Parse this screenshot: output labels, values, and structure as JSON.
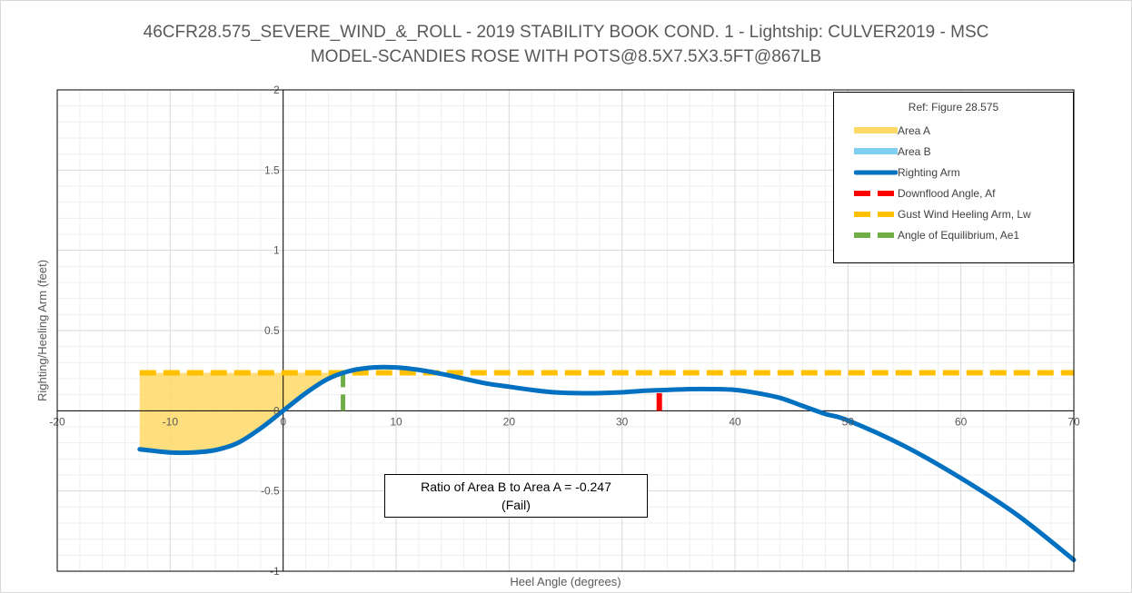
{
  "chart_data": {
    "type": "area",
    "title_lines": [
      "46CFR28.575_SEVERE_WIND_&_ROLL - 2019 STABILITY BOOK COND. 1 - Lightship: CULVER2019 - MSC",
      "MODEL-SCANDIES ROSE WITH POTS@8.5X7.5X3.5FT@867LB"
    ],
    "xlabel": "Heel Angle (degrees)",
    "ylabel": "Righting/Heeling Arm (feet)",
    "xlim": [
      -20,
      70
    ],
    "ylim": [
      -1,
      2
    ],
    "x_ticks": [
      "-20",
      "-10",
      "0",
      "10",
      "20",
      "30",
      "40",
      "50",
      "60",
      "70"
    ],
    "y_ticks": [
      "-1",
      "-0.5",
      "0",
      "0.5",
      "1",
      "1.5",
      "2"
    ],
    "grid": true,
    "legend": {
      "title": "Ref: Figure 28.575",
      "placement": "top-right",
      "items": [
        {
          "label": "Area A",
          "color": "#FFD966",
          "style": "area"
        },
        {
          "label": "Area B",
          "color": "#7FD0F0",
          "style": "area"
        },
        {
          "label": "Righting Arm",
          "color": "#0070C0",
          "style": "line"
        },
        {
          "label": "Downflood Angle, Af",
          "color": "#FF0000",
          "style": "dashed"
        },
        {
          "label": "Gust Wind Heeling Arm, Lw",
          "color": "#FFC000",
          "style": "dashed"
        },
        {
          "label": "Angle of Equilibrium, Ae1",
          "color": "#70AD47",
          "style": "dashed"
        }
      ]
    },
    "series": [
      {
        "name": "Righting Arm",
        "color": "#0070C0",
        "x": [
          -12.7,
          -10,
          -8,
          -6,
          -4,
          -2,
          0,
          2,
          4,
          6,
          8,
          10,
          12,
          14,
          16,
          18,
          20,
          22,
          24,
          26,
          28,
          30,
          32,
          34,
          36,
          38,
          40,
          42,
          44,
          46,
          48,
          50,
          55,
          60,
          65,
          70
        ],
        "y": [
          -0.24,
          -0.26,
          -0.26,
          -0.245,
          -0.2,
          -0.11,
          0.0,
          0.11,
          0.2,
          0.25,
          0.27,
          0.27,
          0.255,
          0.23,
          0.2,
          0.17,
          0.15,
          0.13,
          0.115,
          0.11,
          0.11,
          0.115,
          0.125,
          0.13,
          0.135,
          0.135,
          0.13,
          0.11,
          0.08,
          0.03,
          -0.02,
          -0.06,
          -0.22,
          -0.42,
          -0.65,
          -0.93
        ]
      },
      {
        "name": "Gust Wind Heeling Arm, Lw",
        "color": "#FFC000",
        "x": [
          -12.7,
          70
        ],
        "y": [
          0.237,
          0.237
        ]
      }
    ],
    "downflood_angle": {
      "x": 33.3,
      "y_range": [
        0,
        0.11
      ],
      "color": "#FF0000"
    },
    "equilibrium_angle": {
      "x": 5.3,
      "y_range": [
        0,
        0.28
      ],
      "color": "#70AD47"
    },
    "area_a": {
      "x_from": -12.7,
      "x_to": 5.3,
      "color": "#FFD966"
    },
    "annotation_lines": [
      "Ratio of Area B to Area A = -0.247",
      "(Fail)"
    ]
  }
}
